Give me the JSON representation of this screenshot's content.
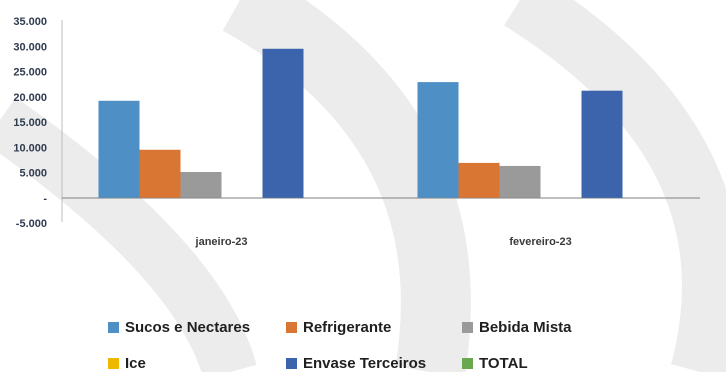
{
  "chart_data": {
    "type": "bar",
    "categories": [
      "janeiro-23",
      "fevereiro-23"
    ],
    "series": [
      {
        "name": "Sucos e Nectares",
        "color": "#4e8fc6",
        "values": [
          19200,
          22900
        ]
      },
      {
        "name": "Refrigerante",
        "color": "#d97633",
        "values": [
          9500,
          6900
        ]
      },
      {
        "name": "Bebida Mista",
        "color": "#9a9a9a",
        "values": [
          5100,
          6300
        ]
      },
      {
        "name": "Ice",
        "color": "#efb800",
        "values": [
          0,
          0
        ]
      },
      {
        "name": "Envase Terceiros",
        "color": "#3b64ad",
        "values": [
          29500,
          21200
        ]
      },
      {
        "name": "TOTAL",
        "color": "#6aa84f",
        "values": [
          0,
          0
        ]
      }
    ],
    "y_ticks": [
      "35.000",
      "30.000",
      "25.000",
      "20.000",
      "15.000",
      "10.000",
      "5.000",
      "-",
      "-5.000"
    ],
    "ylim": [
      -5000,
      35000
    ],
    "grid": false,
    "legend_position": "bottom",
    "title": "",
    "xlabel": "",
    "ylabel": ""
  }
}
